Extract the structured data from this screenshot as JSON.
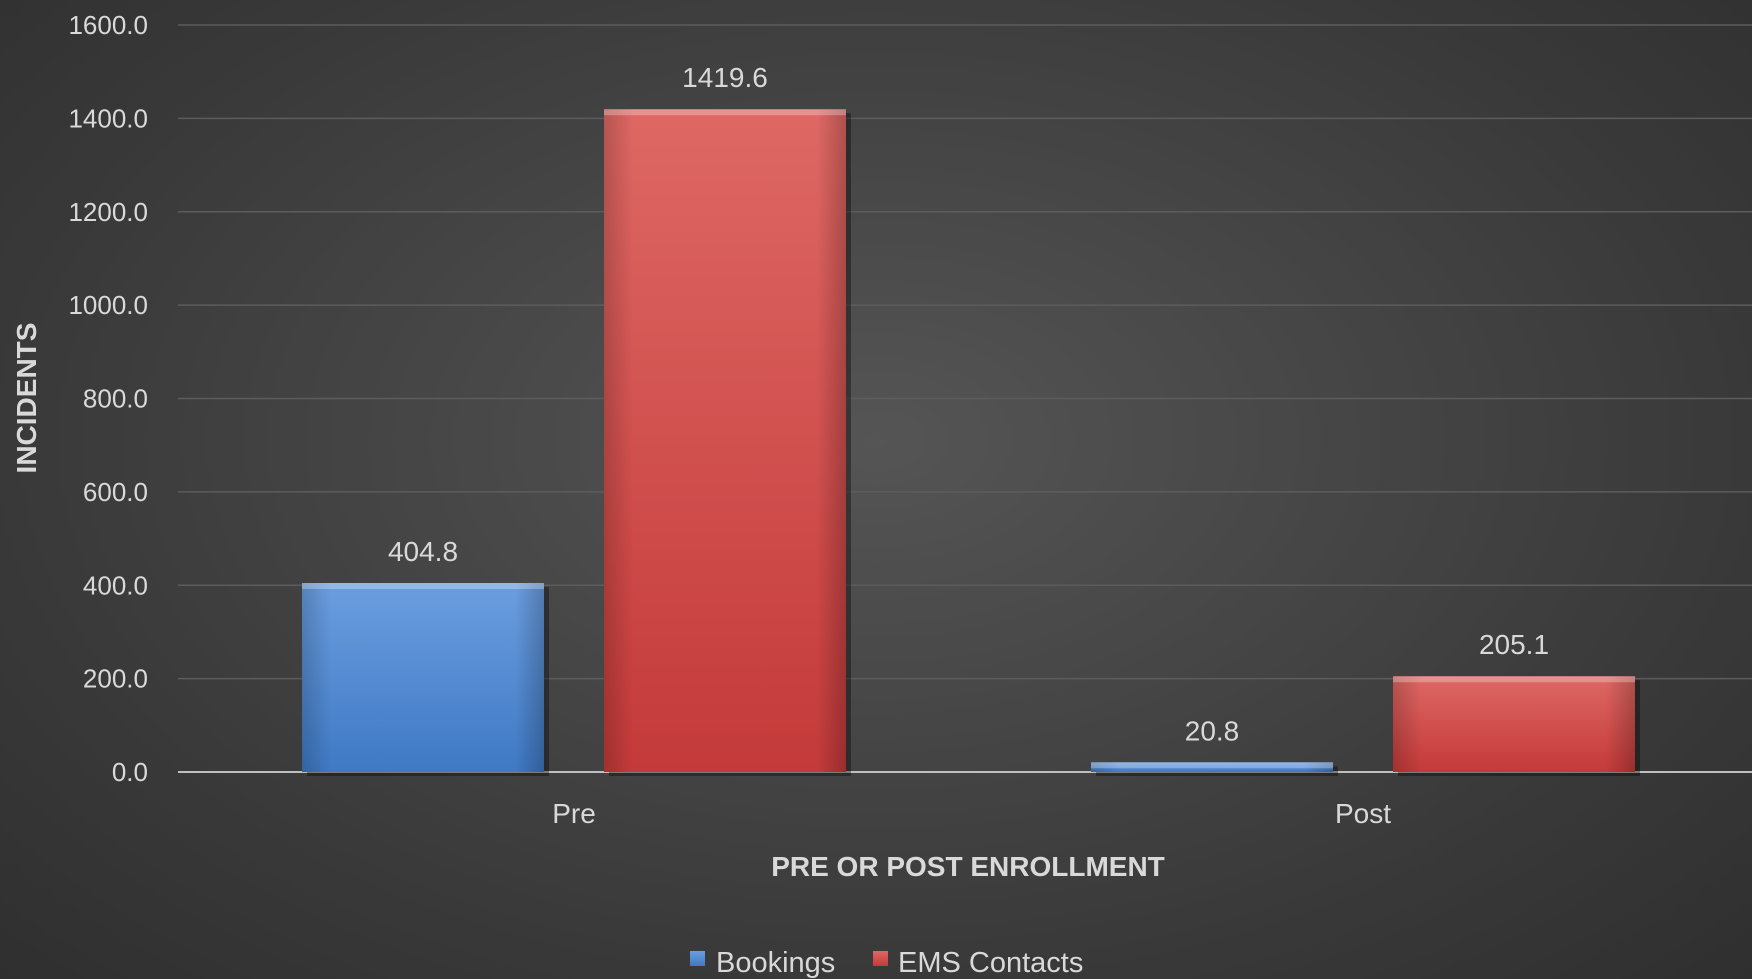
{
  "chart_data": {
    "type": "bar",
    "title": "",
    "xlabel": "PRE OR POST ENROLLMENT",
    "ylabel": "INCIDENTS",
    "categories": [
      "Pre",
      "Post"
    ],
    "series": [
      {
        "name": "Bookings",
        "values": [
          404.8,
          20.8
        ],
        "labels": [
          "404.8",
          "20.8"
        ],
        "color": "#4a86d0"
      },
      {
        "name": "EMS Contacts",
        "values": [
          1419.6,
          205.1
        ],
        "labels": [
          "1419.6",
          "205.1"
        ],
        "color": "#d0484a"
      }
    ],
    "ylim": [
      0,
      1600
    ],
    "yticks": [
      "0.0",
      "200.0",
      "400.0",
      "600.0",
      "800.0",
      "1000.0",
      "1200.0",
      "1400.0",
      "1600.0"
    ],
    "grid": true,
    "legend_position": "bottom-center"
  }
}
